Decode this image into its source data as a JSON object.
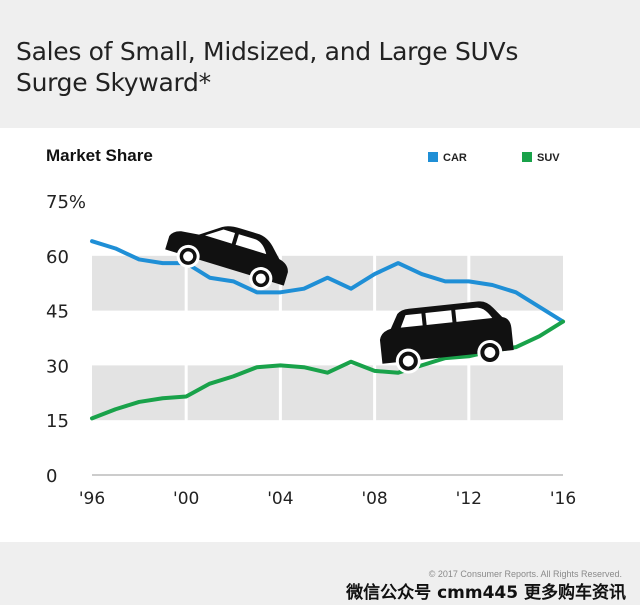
{
  "header": {
    "title_line1": "Sales of Small, Midsized, and Large SUVs",
    "title_line2": "Surge Skyward*"
  },
  "footer": {
    "copyright": "© 2017 Consumer Reports. All Rights Reserved.",
    "watermark": "微信公众号 cmm445 更多购车资讯"
  },
  "chart_data": {
    "type": "line",
    "title": "Market Share",
    "xlabel": "",
    "ylabel": "",
    "x": [
      1996,
      1997,
      1998,
      1999,
      2000,
      2001,
      2002,
      2003,
      2004,
      2005,
      2006,
      2007,
      2008,
      2009,
      2010,
      2011,
      2012,
      2013,
      2014,
      2015,
      2016
    ],
    "xlim": [
      1996,
      2016
    ],
    "ylim": [
      0,
      75
    ],
    "y_ticks": [
      0,
      15,
      30,
      45,
      60,
      75
    ],
    "y_tick_labels": [
      "0",
      "15",
      "30",
      "45",
      "60",
      "75%"
    ],
    "x_ticks": [
      1996,
      2000,
      2004,
      2008,
      2012,
      2016
    ],
    "x_tick_labels": [
      "'96",
      "'00",
      "'04",
      "'08",
      "'12",
      "'16"
    ],
    "series": [
      {
        "name": "CAR",
        "color": "#1f8fd6",
        "values": [
          64,
          62,
          59,
          58,
          58,
          54,
          53,
          50,
          50,
          51,
          54,
          51,
          55,
          58,
          55,
          53,
          53,
          52,
          50,
          46,
          42
        ]
      },
      {
        "name": "SUV",
        "color": "#19a24a",
        "values": [
          15.5,
          18,
          20,
          21,
          21.5,
          25,
          27,
          29.5,
          30,
          29.5,
          28,
          31,
          28.5,
          28,
          30,
          32,
          32.5,
          34,
          35,
          38,
          42
        ]
      }
    ],
    "legend_position": "top-right",
    "grid": "alternating bands",
    "icons": [
      "car-icon",
      "suv-icon"
    ]
  }
}
